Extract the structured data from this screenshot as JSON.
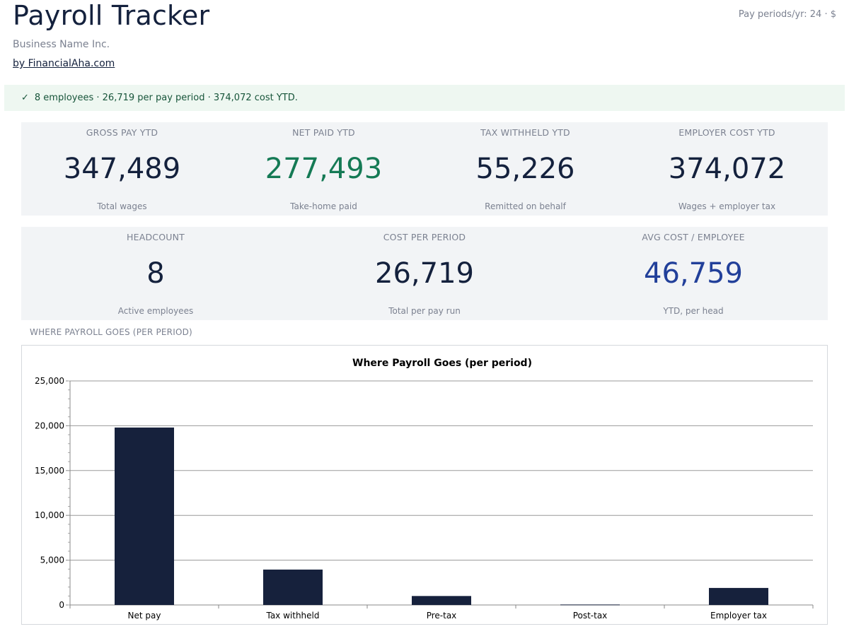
{
  "header": {
    "title": "Payroll Tracker",
    "business_name": "Business Name Inc.",
    "link_text": "by FinancialAha.com",
    "meta": "Pay periods/yr: 24 · $"
  },
  "banner": {
    "icon": "check-icon",
    "check": "✓",
    "text": "8 employees · 26,719 per pay period · 374,072 cost YTD."
  },
  "kpis_row1": [
    {
      "label": "GROSS PAY YTD",
      "value": "347,489",
      "note": "Total wages"
    },
    {
      "label": "NET PAID YTD",
      "value": "277,493",
      "note": "Take-home paid"
    },
    {
      "label": "TAX WITHHELD YTD",
      "value": "55,226",
      "note": "Remitted on behalf"
    },
    {
      "label": "EMPLOYER COST YTD",
      "value": "374,072",
      "note": "Wages + employer tax"
    }
  ],
  "kpis_row2": [
    {
      "label": "HEADCOUNT",
      "value": "8",
      "note": "Active employees"
    },
    {
      "label": "COST PER PERIOD",
      "value": "26,719",
      "note": "Total per pay run"
    },
    {
      "label": "AVG COST / EMPLOYEE",
      "value": "46,759",
      "note": "YTD, per head"
    }
  ],
  "colors": {
    "navy": "#14213d",
    "green": "#157a55",
    "blue": "#22409a",
    "bar": "#16213c"
  },
  "section_label": "WHERE PAYROLL GOES (PER PERIOD)",
  "chart_data": {
    "type": "bar",
    "title": "Where Payroll Goes (per period)",
    "categories": [
      "Net pay",
      "Tax withheld",
      "Pre-tax",
      "Post-tax",
      "Employer tax"
    ],
    "values": [
      19800,
      3950,
      1000,
      50,
      1900
    ],
    "ylim": [
      0,
      25000
    ],
    "yticks": [
      0,
      5000,
      10000,
      15000,
      20000,
      25000
    ],
    "ytick_labels": [
      "0",
      "5,000",
      "10,000",
      "15,000",
      "20,000",
      "25,000"
    ],
    "grid": true,
    "xlabel": "",
    "ylabel": ""
  }
}
